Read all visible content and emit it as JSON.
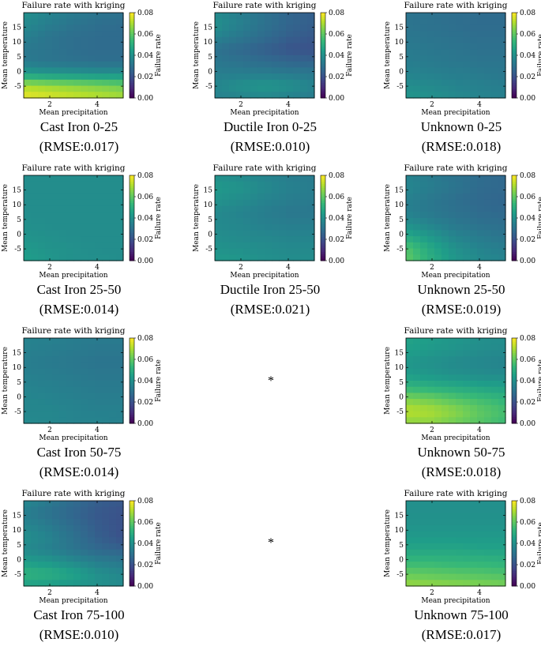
{
  "chart_data": [
    {
      "type": "heatmap",
      "title": "Failure rate with kriging",
      "xlabel": "Mean precipitation",
      "ylabel": "Mean temperature",
      "colorbar_label": "Failure rate",
      "x_ticks": [
        "2",
        "4"
      ],
      "y_ticks": [
        "15",
        "10",
        "5",
        "0",
        "-5"
      ],
      "colorbar_ticks": [
        "0.08",
        "0.06",
        "0.04",
        "0.02",
        "0.00"
      ],
      "caption": "Cast Iron 0-25",
      "rmse": "(RMSE:0.017)",
      "field": [
        [
          0.04,
          0.036,
          0.033,
          0.031,
          0.03
        ],
        [
          0.038,
          0.034,
          0.031,
          0.029,
          0.028
        ],
        [
          0.035,
          0.031,
          0.029,
          0.028,
          0.028
        ],
        [
          0.032,
          0.031,
          0.029,
          0.028,
          0.028
        ],
        [
          0.033,
          0.031,
          0.03,
          0.029,
          0.029
        ],
        [
          0.044,
          0.042,
          0.041,
          0.04,
          0.04
        ],
        [
          0.07,
          0.068,
          0.066,
          0.064,
          0.062
        ],
        [
          0.078,
          0.076,
          0.074,
          0.072,
          0.07
        ]
      ]
    },
    {
      "type": "heatmap",
      "title": "Failure rate with kriging",
      "xlabel": "Mean precipitation",
      "ylabel": "Mean temperature",
      "colorbar_label": "Failure rate",
      "x_ticks": [
        "2",
        "4"
      ],
      "y_ticks": [
        "15",
        "10",
        "5",
        "0",
        "-5"
      ],
      "colorbar_ticks": [
        "0.08",
        "0.06",
        "0.04",
        "0.02",
        "0.00"
      ],
      "caption": "Ductile Iron 0-25",
      "rmse": "(RMSE:0.010)",
      "field": [
        [
          0.038,
          0.034,
          0.03,
          0.026,
          0.024
        ],
        [
          0.04,
          0.035,
          0.03,
          0.026,
          0.024
        ],
        [
          0.036,
          0.032,
          0.028,
          0.024,
          0.022
        ],
        [
          0.03,
          0.027,
          0.024,
          0.021,
          0.02
        ],
        [
          0.032,
          0.03,
          0.028,
          0.026,
          0.025
        ],
        [
          0.034,
          0.034,
          0.034,
          0.033,
          0.032
        ],
        [
          0.037,
          0.04,
          0.042,
          0.04,
          0.036
        ],
        [
          0.035,
          0.036,
          0.037,
          0.035,
          0.033
        ]
      ]
    },
    {
      "type": "heatmap",
      "title": "Failure rate with kriging",
      "xlabel": "Mean precipitation",
      "ylabel": "Mean temperature",
      "colorbar_label": "Failure rate",
      "x_ticks": [
        "2",
        "4"
      ],
      "y_ticks": [
        "15",
        "10",
        "5",
        "0",
        "-5"
      ],
      "colorbar_ticks": [
        "0.08",
        "0.06",
        "0.04",
        "0.02",
        "0.00"
      ],
      "caption": "Unknown 0-25",
      "rmse": "(RMSE:0.018)",
      "field": [
        [
          0.031,
          0.03,
          0.029,
          0.028,
          0.028
        ],
        [
          0.031,
          0.03,
          0.029,
          0.028,
          0.028
        ],
        [
          0.032,
          0.031,
          0.03,
          0.029,
          0.029
        ],
        [
          0.033,
          0.032,
          0.031,
          0.03,
          0.03
        ],
        [
          0.034,
          0.033,
          0.032,
          0.031,
          0.031
        ],
        [
          0.036,
          0.035,
          0.034,
          0.033,
          0.032
        ],
        [
          0.039,
          0.038,
          0.036,
          0.035,
          0.034
        ],
        [
          0.042,
          0.04,
          0.038,
          0.036,
          0.035
        ]
      ]
    },
    {
      "type": "heatmap",
      "title": "Failure rate with kriging",
      "xlabel": "Mean precipitation",
      "ylabel": "Mean temperature",
      "colorbar_label": "Failure rate",
      "x_ticks": [
        "2",
        "4"
      ],
      "y_ticks": [
        "15",
        "10",
        "5",
        "0",
        "-5"
      ],
      "colorbar_ticks": [
        "0.08",
        "0.06",
        "0.04",
        "0.02",
        "0.00"
      ],
      "caption": "Cast Iron 25-50",
      "rmse": "(RMSE:0.014)",
      "field": [
        [
          0.039,
          0.039,
          0.039,
          0.039,
          0.039
        ],
        [
          0.039,
          0.039,
          0.039,
          0.039,
          0.039
        ],
        [
          0.039,
          0.039,
          0.039,
          0.039,
          0.039
        ],
        [
          0.039,
          0.039,
          0.039,
          0.039,
          0.039
        ],
        [
          0.04,
          0.039,
          0.039,
          0.039,
          0.039
        ],
        [
          0.041,
          0.04,
          0.039,
          0.039,
          0.039
        ],
        [
          0.043,
          0.041,
          0.04,
          0.039,
          0.039
        ],
        [
          0.045,
          0.042,
          0.04,
          0.04,
          0.039
        ]
      ]
    },
    {
      "type": "heatmap",
      "title": "Failure rate with kriging",
      "xlabel": "Mean precipitation",
      "ylabel": "Mean temperature",
      "colorbar_label": "Failure rate",
      "x_ticks": [
        "2",
        "4"
      ],
      "y_ticks": [
        "15",
        "10",
        "5",
        "0",
        "-5"
      ],
      "colorbar_ticks": [
        "0.08",
        "0.06",
        "0.04",
        "0.02",
        "0.00"
      ],
      "caption": "Ductile Iron 25-50",
      "rmse": "(RMSE:0.021)",
      "field": [
        [
          0.04,
          0.038,
          0.036,
          0.034,
          0.033
        ],
        [
          0.043,
          0.041,
          0.038,
          0.035,
          0.034
        ],
        [
          0.041,
          0.039,
          0.036,
          0.034,
          0.033
        ],
        [
          0.038,
          0.036,
          0.034,
          0.032,
          0.032
        ],
        [
          0.038,
          0.037,
          0.035,
          0.034,
          0.034
        ],
        [
          0.039,
          0.038,
          0.037,
          0.036,
          0.036
        ],
        [
          0.041,
          0.04,
          0.039,
          0.038,
          0.038
        ],
        [
          0.043,
          0.042,
          0.04,
          0.039,
          0.039
        ]
      ]
    },
    {
      "type": "heatmap",
      "title": "Failure rate with kriging",
      "xlabel": "Mean precipitation",
      "ylabel": "Mean temperature",
      "colorbar_label": "Failure rate",
      "x_ticks": [
        "2",
        "4"
      ],
      "y_ticks": [
        "15",
        "10",
        "5",
        "0",
        "-5"
      ],
      "colorbar_ticks": [
        "0.08",
        "0.06",
        "0.04",
        "0.02",
        "0.00"
      ],
      "caption": "Unknown 25-50",
      "rmse": "(RMSE:0.019)",
      "field": [
        [
          0.036,
          0.033,
          0.03,
          0.028,
          0.027
        ],
        [
          0.037,
          0.034,
          0.031,
          0.028,
          0.027
        ],
        [
          0.035,
          0.032,
          0.029,
          0.027,
          0.026
        ],
        [
          0.035,
          0.032,
          0.03,
          0.028,
          0.027
        ],
        [
          0.04,
          0.036,
          0.032,
          0.03,
          0.029
        ],
        [
          0.048,
          0.042,
          0.036,
          0.033,
          0.031
        ],
        [
          0.058,
          0.048,
          0.04,
          0.036,
          0.034
        ],
        [
          0.06,
          0.05,
          0.042,
          0.038,
          0.036
        ]
      ]
    },
    {
      "type": "heatmap",
      "title": "Failure rate with kriging",
      "xlabel": "Mean precipitation",
      "ylabel": "Mean temperature",
      "colorbar_label": "Failure rate",
      "x_ticks": [
        "2",
        "4"
      ],
      "y_ticks": [
        "15",
        "10",
        "5",
        "0",
        "-5"
      ],
      "colorbar_ticks": [
        "0.08",
        "0.06",
        "0.04",
        "0.02",
        "0.00"
      ],
      "caption": "Cast Iron 50-75",
      "rmse": "(RMSE:0.014)",
      "field": [
        [
          0.036,
          0.035,
          0.034,
          0.033,
          0.033
        ],
        [
          0.035,
          0.034,
          0.033,
          0.032,
          0.032
        ],
        [
          0.034,
          0.033,
          0.032,
          0.031,
          0.031
        ],
        [
          0.035,
          0.034,
          0.033,
          0.032,
          0.032
        ],
        [
          0.036,
          0.035,
          0.034,
          0.033,
          0.033
        ],
        [
          0.037,
          0.036,
          0.035,
          0.034,
          0.034
        ],
        [
          0.037,
          0.037,
          0.036,
          0.035,
          0.035
        ],
        [
          0.038,
          0.037,
          0.036,
          0.036,
          0.035
        ]
      ]
    },
    {
      "type": "heatmap",
      "title": "Failure rate with kriging",
      "xlabel": "Mean precipitation",
      "ylabel": "Mean temperature",
      "colorbar_label": "Failure rate",
      "x_ticks": [
        "2",
        "4"
      ],
      "y_ticks": [
        "15",
        "10",
        "5",
        "0",
        "-5"
      ],
      "colorbar_ticks": [
        "0.08",
        "0.06",
        "0.04",
        "0.02",
        "0.00"
      ],
      "caption": "Unknown 50-75",
      "rmse": "(RMSE:0.018)",
      "field": [
        [
          0.046,
          0.044,
          0.042,
          0.04,
          0.039
        ],
        [
          0.045,
          0.043,
          0.041,
          0.039,
          0.038
        ],
        [
          0.042,
          0.04,
          0.038,
          0.037,
          0.036
        ],
        [
          0.044,
          0.042,
          0.04,
          0.039,
          0.038
        ],
        [
          0.052,
          0.05,
          0.048,
          0.046,
          0.045
        ],
        [
          0.064,
          0.062,
          0.058,
          0.055,
          0.052
        ],
        [
          0.072,
          0.07,
          0.066,
          0.06,
          0.056
        ],
        [
          0.066,
          0.066,
          0.062,
          0.058,
          0.054
        ]
      ]
    },
    {
      "type": "heatmap",
      "title": "Failure rate with kriging",
      "xlabel": "Mean precipitation",
      "ylabel": "Mean temperature",
      "colorbar_label": "Failure rate",
      "x_ticks": [
        "2",
        "4"
      ],
      "y_ticks": [
        "15",
        "10",
        "5",
        "0",
        "-5"
      ],
      "colorbar_ticks": [
        "0.08",
        "0.06",
        "0.04",
        "0.02",
        "0.00"
      ],
      "caption": "Cast Iron 75-100",
      "rmse": "(RMSE:0.010)",
      "field": [
        [
          0.038,
          0.033,
          0.028,
          0.024,
          0.022
        ],
        [
          0.034,
          0.03,
          0.026,
          0.022,
          0.02
        ],
        [
          0.037,
          0.033,
          0.028,
          0.023,
          0.02
        ],
        [
          0.04,
          0.036,
          0.03,
          0.024,
          0.02
        ],
        [
          0.038,
          0.035,
          0.031,
          0.027,
          0.025
        ],
        [
          0.044,
          0.042,
          0.038,
          0.034,
          0.032
        ],
        [
          0.052,
          0.05,
          0.046,
          0.04,
          0.037
        ],
        [
          0.045,
          0.044,
          0.042,
          0.04,
          0.038
        ]
      ]
    },
    {
      "type": "heatmap",
      "title": "Failure rate with kriging",
      "xlabel": "Mean precipitation",
      "ylabel": "Mean temperature",
      "colorbar_label": "Failure rate",
      "x_ticks": [
        "2",
        "4"
      ],
      "y_ticks": [
        "15",
        "10",
        "5",
        "0",
        "-5"
      ],
      "colorbar_ticks": [
        "0.08",
        "0.06",
        "0.04",
        "0.02",
        "0.00"
      ],
      "caption": "Unknown 75-100",
      "rmse": "(RMSE:0.017)",
      "field": [
        [
          0.04,
          0.04,
          0.04,
          0.04,
          0.04
        ],
        [
          0.04,
          0.04,
          0.04,
          0.04,
          0.04
        ],
        [
          0.041,
          0.041,
          0.041,
          0.041,
          0.041
        ],
        [
          0.043,
          0.043,
          0.043,
          0.043,
          0.043
        ],
        [
          0.047,
          0.047,
          0.047,
          0.046,
          0.046
        ],
        [
          0.053,
          0.053,
          0.052,
          0.052,
          0.051
        ],
        [
          0.061,
          0.06,
          0.059,
          0.058,
          0.057
        ],
        [
          0.068,
          0.067,
          0.066,
          0.065,
          0.064
        ]
      ]
    }
  ],
  "missing_marker": "*"
}
